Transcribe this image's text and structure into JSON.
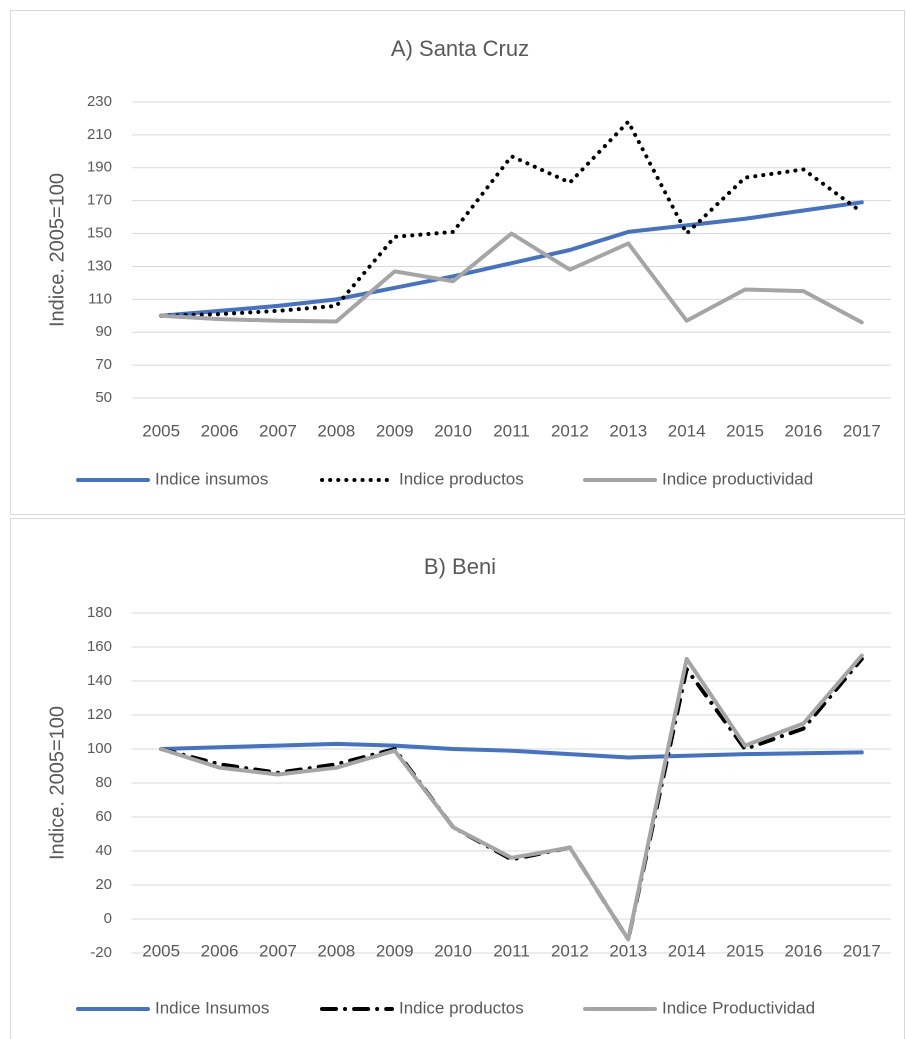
{
  "chart_data": [
    {
      "type": "line",
      "title": "A) Santa Cruz",
      "y_label": "Indice. 2005=100",
      "categories": [
        "2005",
        "2006",
        "2007",
        "2008",
        "2009",
        "2010",
        "2011",
        "2012",
        "2013",
        "2014",
        "2015",
        "2016",
        "2017"
      ],
      "series": [
        {
          "name": "Indice insumos",
          "color": "#4472c4",
          "style": "solid",
          "values": [
            100,
            103,
            106,
            110,
            117,
            124,
            132,
            140,
            151,
            155,
            159,
            164,
            169
          ]
        },
        {
          "name": "Indice productos",
          "color": "#000000",
          "style": "dotted",
          "values": [
            100,
            101,
            103,
            106,
            148,
            151,
            197,
            181,
            218,
            150,
            184,
            189,
            163
          ]
        },
        {
          "name": "Indice productividad",
          "color": "#a5a5a5",
          "style": "solid",
          "values": [
            100,
            98,
            97,
            96.5,
            127,
            121,
            150,
            128,
            144,
            97,
            116,
            115,
            96
          ]
        }
      ],
      "ylim": [
        50,
        230
      ],
      "yticks": [
        50,
        70,
        90,
        110,
        130,
        150,
        170,
        190,
        210,
        230
      ],
      "grid": true,
      "legend": "bottom"
    },
    {
      "type": "line",
      "title": "B) Beni",
      "y_label": "Indice. 2005=100",
      "categories": [
        "2005",
        "2006",
        "2007",
        "2008",
        "2009",
        "2010",
        "2011",
        "2012",
        "2013",
        "2014",
        "2015",
        "2016",
        "2017"
      ],
      "series": [
        {
          "name": "Indice Insumos",
          "color": "#4472c4",
          "style": "solid",
          "values": [
            100,
            101,
            102,
            103,
            102,
            100,
            99,
            97,
            95,
            96,
            97,
            97.5,
            98
          ]
        },
        {
          "name": "Indice productos",
          "color": "#000000",
          "style": "dash-dot",
          "values": [
            100,
            91,
            86,
            91,
            100,
            54,
            35,
            42,
            -12,
            147,
            100,
            112,
            153
          ]
        },
        {
          "name": "Indice Productividad",
          "color": "#a5a5a5",
          "style": "solid",
          "values": [
            100,
            89,
            85,
            89,
            99,
            54,
            36,
            42,
            -12,
            153,
            102,
            115,
            155
          ]
        }
      ],
      "ylim": [
        -20,
        180
      ],
      "yticks": [
        -20,
        0,
        20,
        40,
        60,
        80,
        100,
        120,
        140,
        160,
        180
      ],
      "grid": true,
      "legend": "bottom"
    }
  ]
}
